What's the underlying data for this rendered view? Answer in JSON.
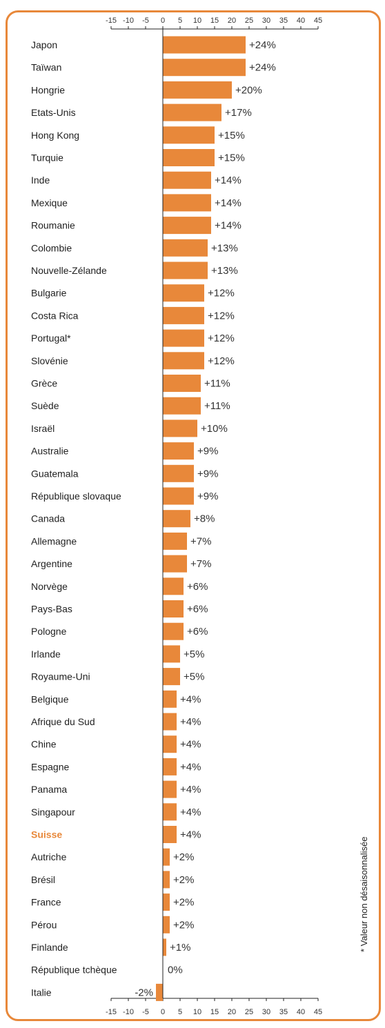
{
  "accent_color": "#e8883a",
  "chart_data": {
    "type": "bar",
    "orientation": "horizontal",
    "title": "",
    "xlim": [
      -15,
      45
    ],
    "xticks": [
      -15,
      -10,
      -5,
      0,
      5,
      10,
      15,
      20,
      25,
      30,
      35,
      40,
      45
    ],
    "highlight_category": "Suisse",
    "footnote": "* Valeur non désaisonnalisée",
    "categories": [
      "Japon",
      "Taïwan",
      "Hongrie",
      "Etats-Unis",
      "Hong Kong",
      "Turquie",
      "Inde",
      "Mexique",
      "Roumanie",
      "Colombie",
      "Nouvelle-Zélande",
      "Bulgarie",
      "Costa Rica",
      "Portugal*",
      "Slovénie",
      "Grèce",
      "Suède",
      "Israël",
      "Australie",
      "Guatemala",
      "République slovaque",
      "Canada",
      "Allemagne",
      "Argentine",
      "Norvège",
      "Pays-Bas",
      "Pologne",
      "Irlande",
      "Royaume-Uni",
      "Belgique",
      "Afrique du Sud",
      "Chine",
      "Espagne",
      "Panama",
      "Singapour",
      "Suisse",
      "Autriche",
      "Brésil",
      "France",
      "Pérou",
      "Finlande",
      "République tchèque",
      "Italie"
    ],
    "values": [
      24,
      24,
      20,
      17,
      15,
      15,
      14,
      14,
      14,
      13,
      13,
      12,
      12,
      12,
      12,
      11,
      11,
      10,
      9,
      9,
      9,
      8,
      7,
      7,
      6,
      6,
      6,
      5,
      5,
      4,
      4,
      4,
      4,
      4,
      4,
      4,
      2,
      2,
      2,
      2,
      1,
      0,
      -2
    ],
    "value_labels": [
      "+24%",
      "+24%",
      "+20%",
      "+17%",
      "+15%",
      "+15%",
      "+14%",
      "+14%",
      "+14%",
      "+13%",
      "+13%",
      "+12%",
      "+12%",
      "+12%",
      "+12%",
      "+11%",
      "+11%",
      "+10%",
      "+9%",
      "+9%",
      "+9%",
      "+8%",
      "+7%",
      "+7%",
      "+6%",
      "+6%",
      "+6%",
      "+5%",
      "+5%",
      "+4%",
      "+4%",
      "+4%",
      "+4%",
      "+4%",
      "+4%",
      "+4%",
      "+2%",
      "+2%",
      "+2%",
      "+2%",
      "+1%",
      "0%",
      "-2%"
    ]
  }
}
